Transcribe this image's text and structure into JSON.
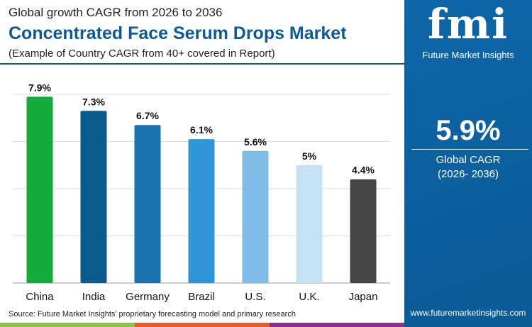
{
  "header": {
    "subtitle": "Global growth CAGR from 2026 to 2036",
    "title": "Concentrated Face Serum Drops Market",
    "note": "(Example of Country CAGR from 40+ covered in Report)"
  },
  "source": "Source: Future Market Insights’ proprietary forecasting model and primary research",
  "panel": {
    "logo": "fmi",
    "logo_text": "Future Market Insights",
    "cagr_value": "5.9%",
    "cagr_label": "Global CAGR",
    "cagr_period": "(2026- 2036)",
    "url": "www.futuremarketinsights.com"
  },
  "stripe_colors": [
    "#8bc34a",
    "#e85a2a",
    "#8e2f8c"
  ],
  "chart_data": {
    "type": "bar",
    "categories": [
      "China",
      "India",
      "Germany",
      "Brazil",
      "U.S.",
      "U.K.",
      "Japan"
    ],
    "values": [
      7.9,
      7.3,
      6.7,
      6.1,
      5.6,
      5,
      4.4
    ],
    "data_labels": [
      "7.9%",
      "7.3%",
      "6.7%",
      "6.1%",
      "5.6%",
      "5%",
      "4.4%"
    ],
    "colors": [
      "#13ab3a",
      "#0b5a8e",
      "#1a72ae",
      "#2f95d6",
      "#7fbde6",
      "#c5e2f4",
      "#454545"
    ],
    "ylim": [
      0,
      8
    ],
    "grid": true,
    "gridlines": [
      0,
      2,
      4,
      6,
      8
    ]
  }
}
